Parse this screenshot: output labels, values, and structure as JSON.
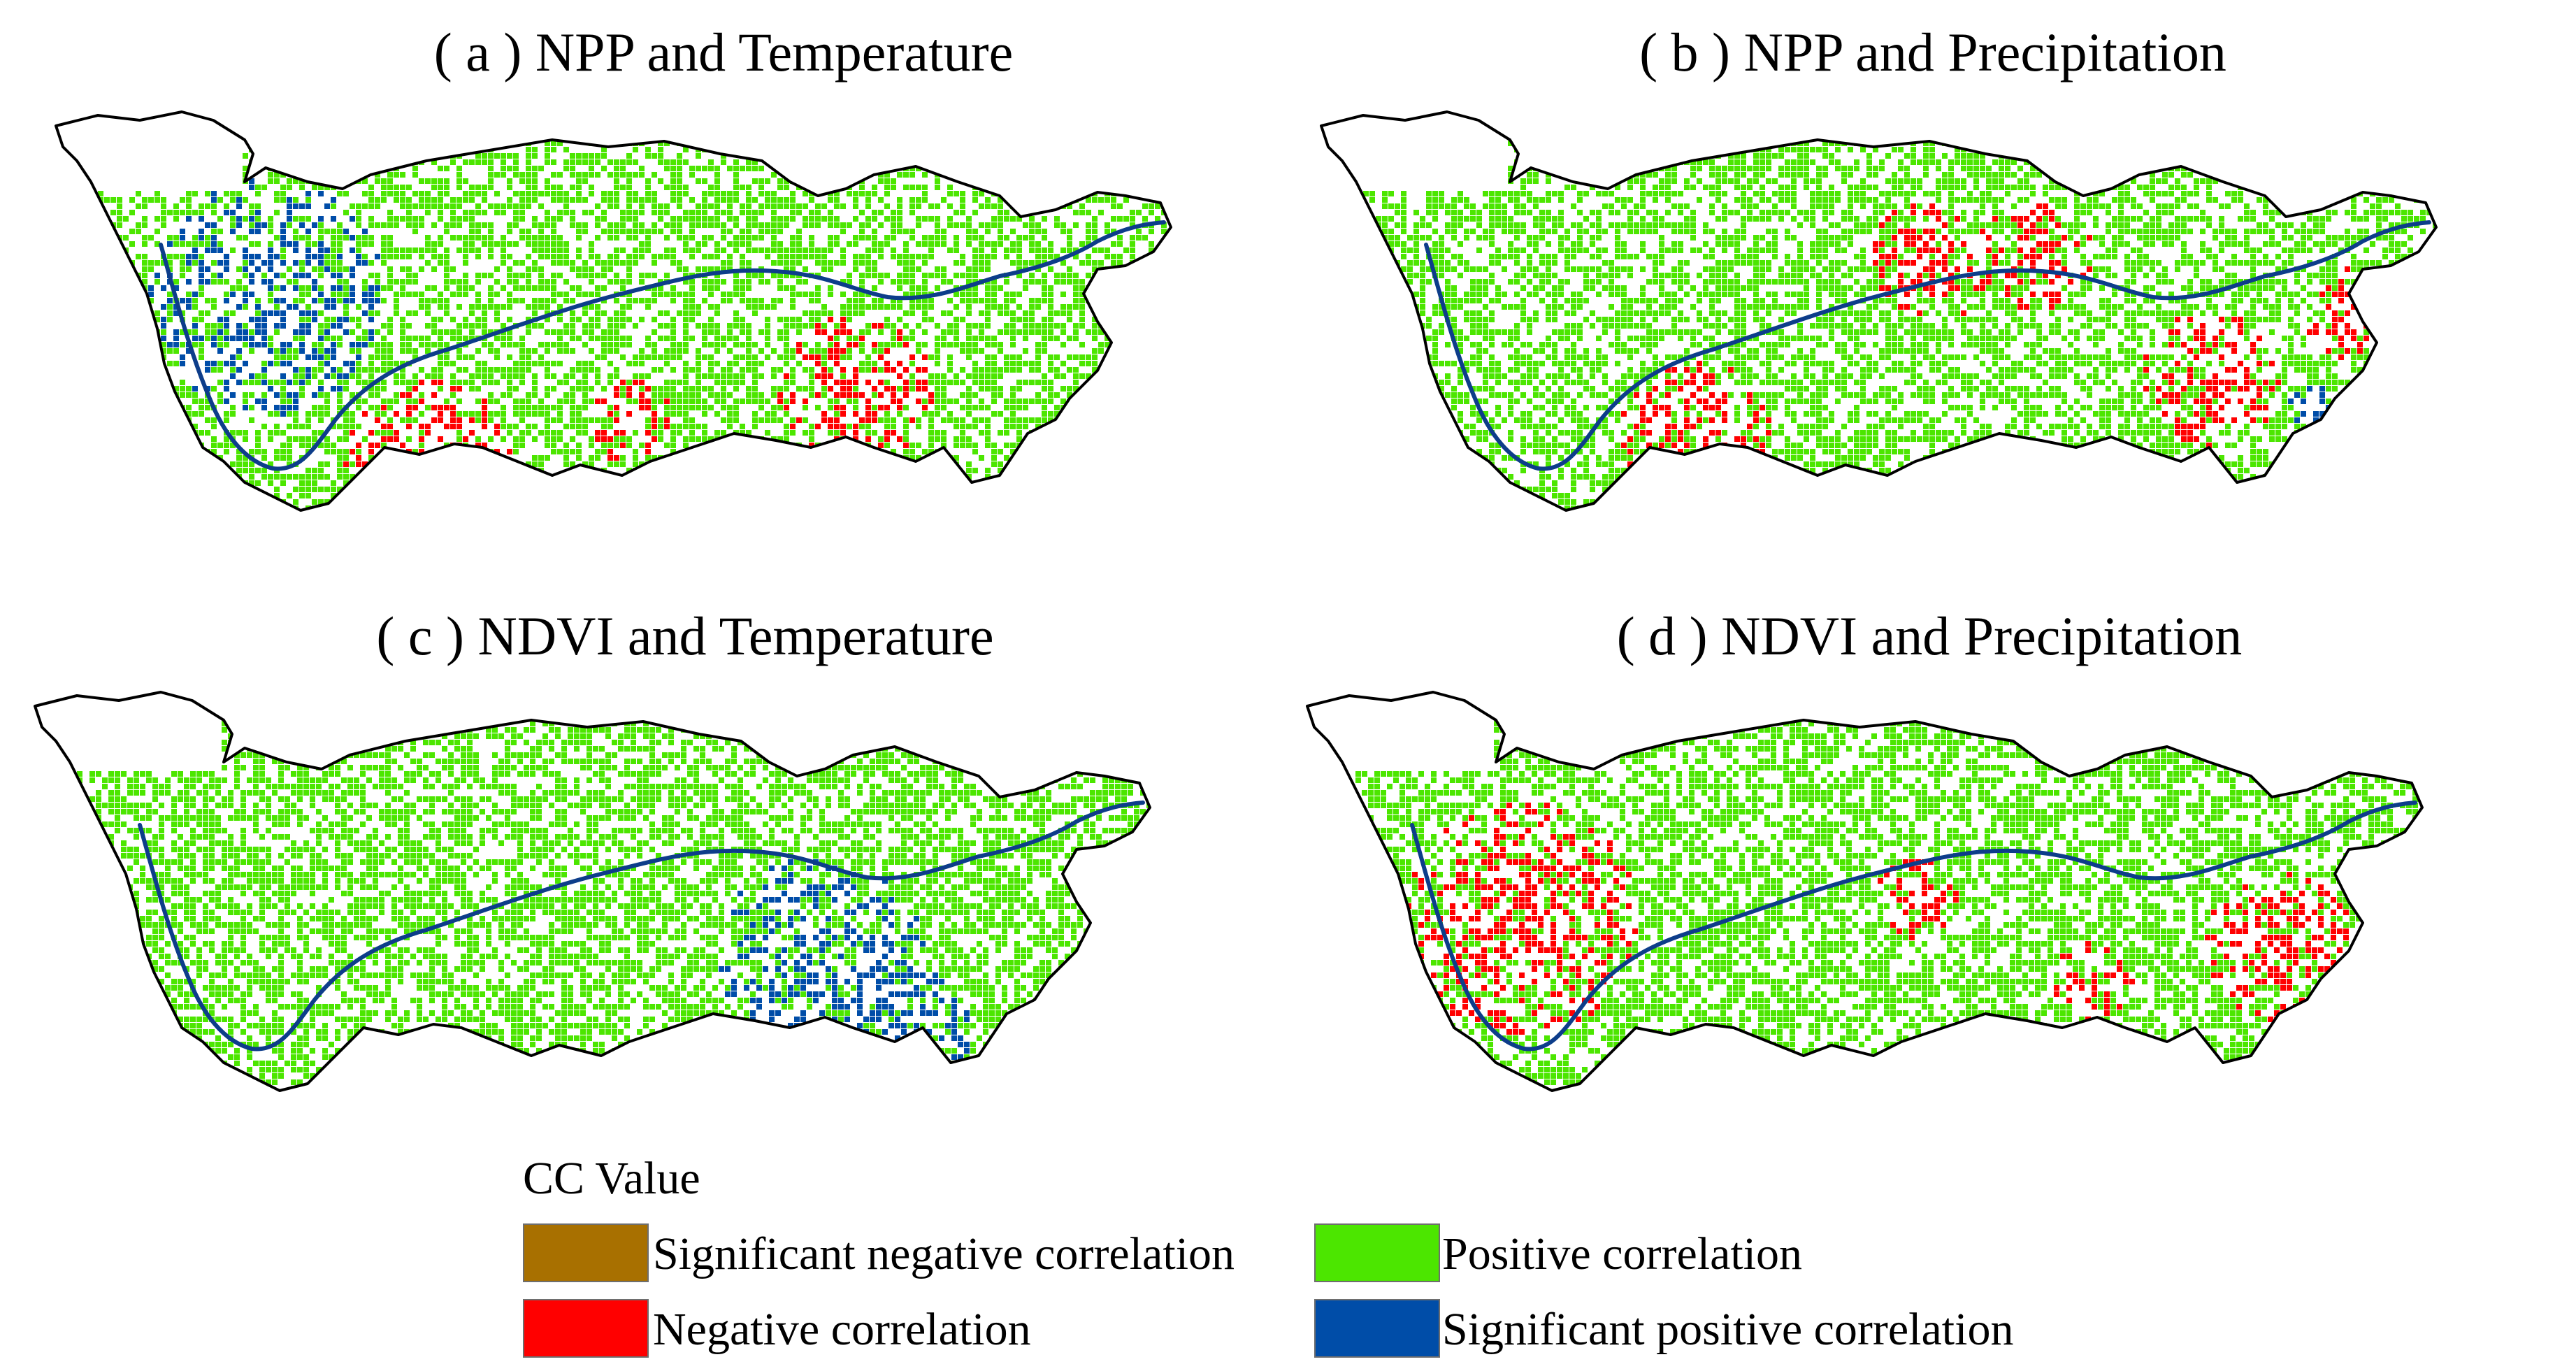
{
  "panels": [
    {
      "title": "( a ) NPP and Temperature",
      "dominant": "green",
      "blue_zone": "west",
      "red_zone": "southwest-southeast"
    },
    {
      "title": "( b ) NPP and Precipitation",
      "dominant": "green",
      "blue_zone": "minor",
      "red_zone": "scattered"
    },
    {
      "title": "( c ) NDVI and Temperature",
      "dominant": "green",
      "blue_zone": "central-south",
      "red_zone": "none"
    },
    {
      "title": "( d ) NDVI and Precipitation",
      "dominant": "green",
      "blue_zone": "none",
      "red_zone": "west-east"
    }
  ],
  "legend": {
    "title": "CC Value",
    "items": [
      {
        "label": "Significant negative correlation",
        "color": "#a87000"
      },
      {
        "label": "Positive correlation",
        "color": "#4ce600"
      },
      {
        "label": "Negative correlation",
        "color": "#ff0000"
      },
      {
        "label": "Significant positive correlation",
        "color": "#004da8"
      }
    ]
  },
  "colors": {
    "outline": "#000000",
    "river": "#0d3d8a",
    "positive": "#4ce600",
    "negative": "#ff0000",
    "sig_positive": "#004da8"
  }
}
